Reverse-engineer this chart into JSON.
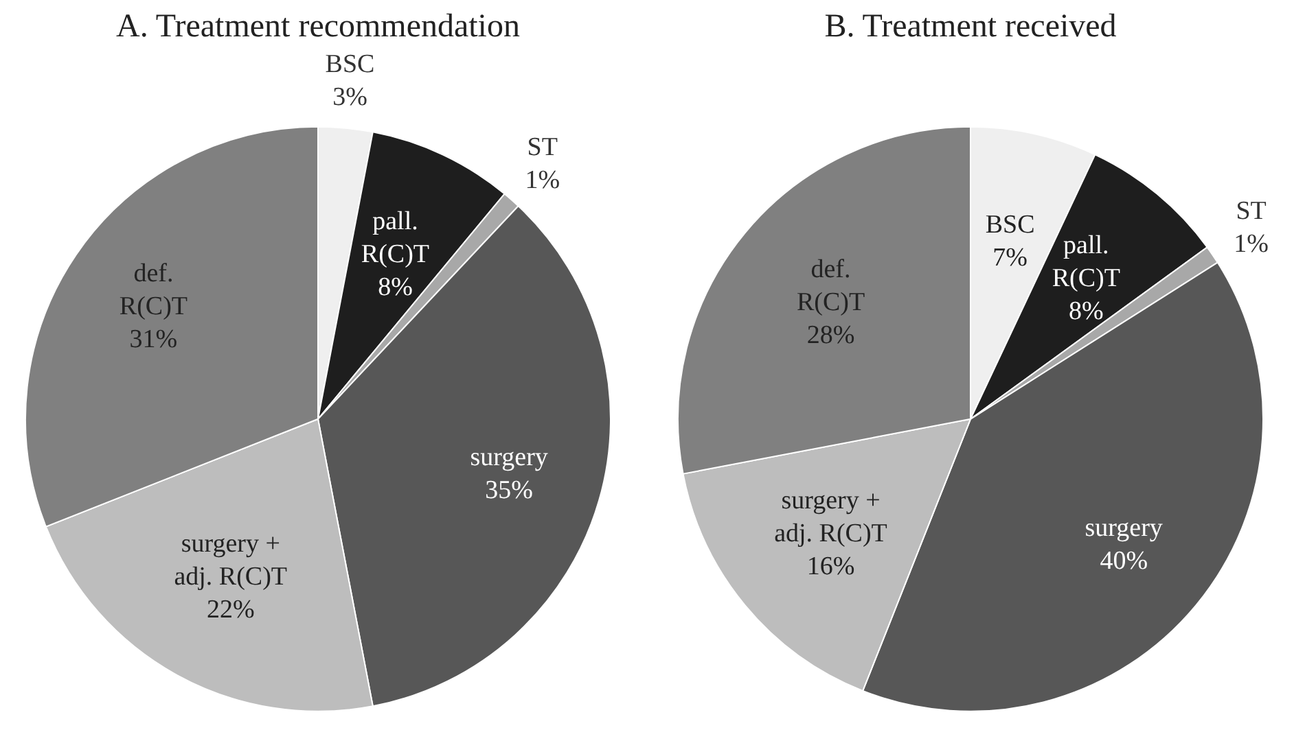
{
  "chart_data": [
    {
      "type": "pie",
      "title": "A. Treatment recommendation",
      "categories": [
        "BSC",
        "pall. R(C)T",
        "ST",
        "surgery",
        "surgery + adj. R(C)T",
        "def. R(C)T"
      ],
      "values": [
        3,
        8,
        1,
        35,
        22,
        31
      ],
      "value_labels": [
        "3%",
        "8%",
        "1%",
        "35%",
        "22%",
        "31%"
      ],
      "colors": [
        "#efefef",
        "#1e1e1e",
        "#a8a8a8",
        "#575757",
        "#bdbdbd",
        "#808080"
      ],
      "legend": false
    },
    {
      "type": "pie",
      "title": "B. Treatment received",
      "categories": [
        "BSC",
        "pall. R(C)T",
        "ST",
        "surgery",
        "surgery + adj. R(C)T",
        "def. R(C)T"
      ],
      "values": [
        7,
        8,
        1,
        40,
        16,
        28
      ],
      "value_labels": [
        "7%",
        "8%",
        "1%",
        "40%",
        "16%",
        "28%"
      ],
      "colors": [
        "#efefef",
        "#1e1e1e",
        "#a8a8a8",
        "#575757",
        "#bdbdbd",
        "#808080"
      ],
      "legend": false
    }
  ]
}
